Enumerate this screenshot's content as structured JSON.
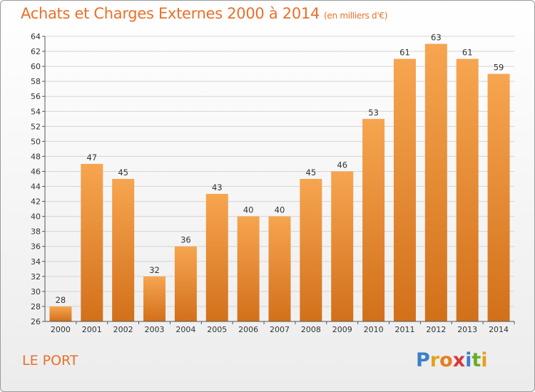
{
  "header": {
    "title": "Achats et Charges Externes 2000 à 2014",
    "subtitle": "(en milliers d'€)"
  },
  "footer": {
    "city": "LE PORT",
    "logo_letters": [
      "P",
      "r",
      "o",
      "x",
      "i",
      "t",
      "i"
    ],
    "logo_colors": [
      "#3a7fc8",
      "#e3a21a",
      "#e87d1e",
      "#d63a3a",
      "#3a7fc8",
      "#6aad2a",
      "#e3a21a"
    ]
  },
  "chart_data": {
    "type": "bar",
    "title": "Achats et Charges Externes 2000 à 2014",
    "subtitle": "(en milliers d'€)",
    "categories": [
      "2000",
      "2001",
      "2002",
      "2003",
      "2004",
      "2005",
      "2006",
      "2007",
      "2008",
      "2009",
      "2010",
      "2011",
      "2012",
      "2013",
      "2014"
    ],
    "values": [
      28,
      47,
      45,
      32,
      36,
      43,
      40,
      40,
      45,
      46,
      53,
      61,
      63,
      61,
      59
    ],
    "ylim": [
      26,
      64
    ],
    "yticks": [
      26,
      28,
      30,
      32,
      34,
      36,
      38,
      40,
      42,
      44,
      46,
      48,
      50,
      52,
      54,
      56,
      58,
      60,
      62,
      64
    ],
    "grid": true,
    "bar_color_top": "#f7a550",
    "bar_color_bottom": "#d2701a"
  }
}
